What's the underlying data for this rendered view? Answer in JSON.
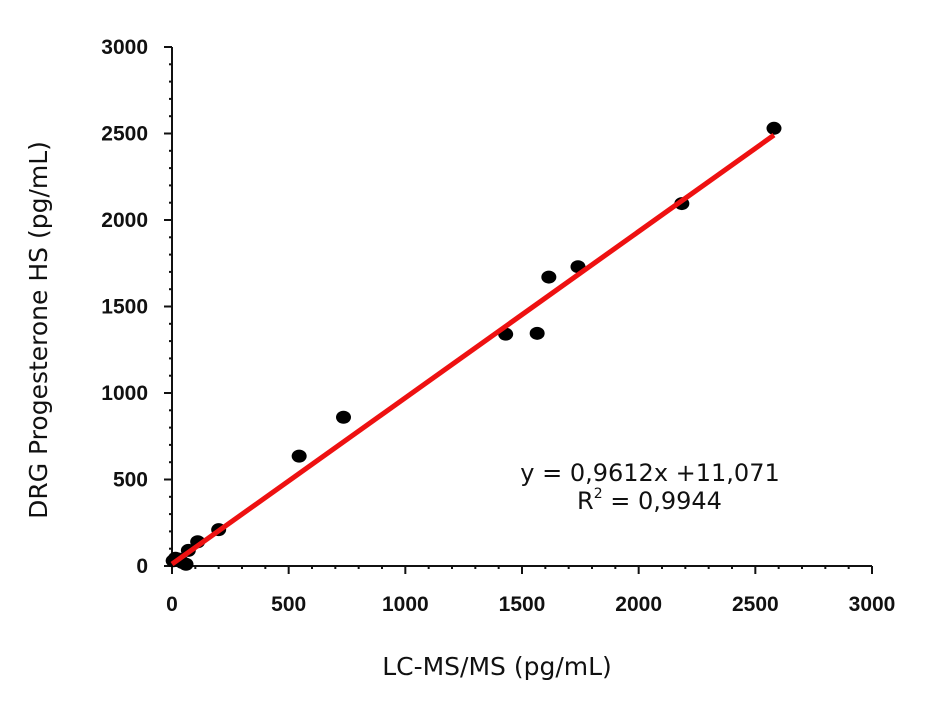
{
  "chart_data": {
    "type": "scatter",
    "title": "",
    "xlabel": "LC-MS/MS (pg/mL)",
    "ylabel": "DRG Progesterone HS (pg/mL)",
    "xlim": [
      0,
      3000
    ],
    "ylim": [
      0,
      3000
    ],
    "x_ticks": [
      0,
      500,
      1000,
      1500,
      2000,
      2500,
      3000
    ],
    "y_ticks": [
      0,
      500,
      1000,
      1500,
      2000,
      2500,
      3000
    ],
    "x_tick_labels": [
      "0",
      "500",
      "1000",
      "1500",
      "2000",
      "2500",
      "3000"
    ],
    "y_tick_labels": [
      "0",
      "500",
      "1000",
      "1500",
      "2000",
      "2500",
      "3000"
    ],
    "grid": false,
    "points": [
      {
        "x": 5,
        "y": 30
      },
      {
        "x": 15,
        "y": 45
      },
      {
        "x": 30,
        "y": 40
      },
      {
        "x": 45,
        "y": 20
      },
      {
        "x": 60,
        "y": 10
      },
      {
        "x": 70,
        "y": 90
      },
      {
        "x": 110,
        "y": 140
      },
      {
        "x": 200,
        "y": 210
      },
      {
        "x": 545,
        "y": 635
      },
      {
        "x": 735,
        "y": 860
      },
      {
        "x": 1430,
        "y": 1340
      },
      {
        "x": 1565,
        "y": 1345
      },
      {
        "x": 1615,
        "y": 1670
      },
      {
        "x": 1740,
        "y": 1730
      },
      {
        "x": 2185,
        "y": 2095
      },
      {
        "x": 2580,
        "y": 2530
      }
    ],
    "trendline": {
      "slope": 0.9612,
      "intercept": 11.071,
      "x_range": [
        0,
        2580
      ],
      "color": "#ee1111"
    },
    "point_color": "#000000",
    "annotations": {
      "equation": "y = 0,9612x +11,071",
      "r2_prefix": "R",
      "r2_superscript": "2",
      "r2_value": " = 0,9944"
    }
  }
}
